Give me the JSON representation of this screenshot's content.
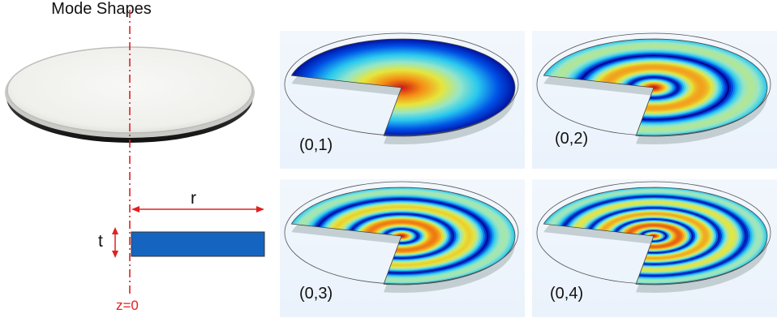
{
  "title": "Mode Shapes",
  "modes": [
    {
      "label": "(0,1)",
      "rings": 1
    },
    {
      "label": "(0,2)",
      "rings": 2
    },
    {
      "label": "(0,3)",
      "rings": 3
    },
    {
      "label": "(0,4)",
      "rings": 4
    }
  ],
  "dimensions": {
    "radius": "r",
    "thickness": "t",
    "axis": "z=0"
  },
  "colors": {
    "disk_fill": "#1565c0",
    "axis": "#e02020",
    "panel_bg": "#eaf2fb"
  }
}
